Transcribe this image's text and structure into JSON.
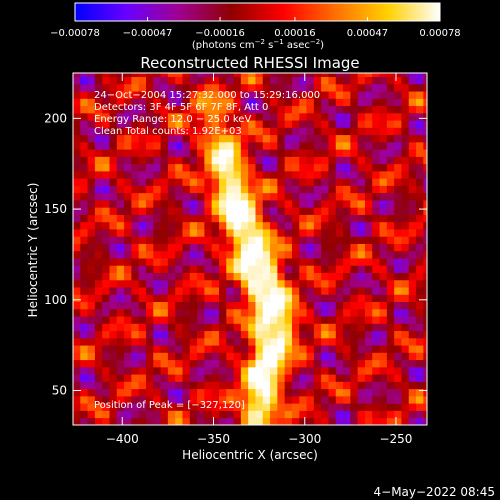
{
  "chart_data": {
    "type": "heatmap",
    "title": "Reconstructed RHESSI Image",
    "xlabel": "Heliocentric X (arcsec)",
    "ylabel": "Heliocentric Y (arcsec)",
    "xlim": [
      -427,
      -233
    ],
    "ylim": [
      31,
      225
    ],
    "xticks": [
      {
        "value": -400,
        "label": "−400"
      },
      {
        "value": -350,
        "label": "−350"
      },
      {
        "value": -300,
        "label": "−300"
      },
      {
        "value": -250,
        "label": "−250"
      }
    ],
    "yticks": [
      {
        "value": 50,
        "label": "50"
      },
      {
        "value": 100,
        "label": "100"
      },
      {
        "value": 150,
        "label": "150"
      },
      {
        "value": 200,
        "label": "200"
      }
    ],
    "colorbar": {
      "min": -0.00078,
      "max": 0.00078,
      "ticks": [
        {
          "value": -0.00078,
          "label": "−0.00078"
        },
        {
          "value": -0.00047,
          "label": "−0.00047"
        },
        {
          "value": -0.00016,
          "label": "−0.00016"
        },
        {
          "value": 0.00016,
          "label": "0.00016"
        },
        {
          "value": 0.00047,
          "label": "0.00047"
        },
        {
          "value": 0.00078,
          "label": "0.00078"
        }
      ],
      "colors": [
        "#0000ff",
        "#6a00ff",
        "#a00090",
        "#900000",
        "#ff0000",
        "#ff7000",
        "#ffd000",
        "#ffffff"
      ]
    },
    "info_lines": [
      "24−Oct−2004 15:27:32.000 to 15:29:16.000",
      "Detectors: 3F 4F 5F 6F 7F 8F, Att 0",
      "Energy Range: 12.0 − 25.0 keV",
      "Clean     Total counts: 1.92E+03"
    ],
    "peak_label": "Position of Peak = [−327,120]",
    "peak": [
      -327,
      120
    ],
    "source_ridge": [
      {
        "x": -325,
        "y": 40,
        "intensity": 0.00078
      },
      {
        "x": -322,
        "y": 60,
        "intensity": 0.0007
      },
      {
        "x": -318,
        "y": 78,
        "intensity": 0.00066
      },
      {
        "x": -315,
        "y": 90,
        "intensity": 0.0007
      },
      {
        "x": -322,
        "y": 108,
        "intensity": 0.00074
      },
      {
        "x": -327,
        "y": 120,
        "intensity": 0.00078
      },
      {
        "x": -332,
        "y": 138,
        "intensity": 0.0007
      },
      {
        "x": -338,
        "y": 152,
        "intensity": 0.0006
      },
      {
        "x": -342,
        "y": 168,
        "intensity": 0.00058
      },
      {
        "x": -345,
        "y": 185,
        "intensity": 0.0005
      },
      {
        "x": -352,
        "y": 205,
        "intensity": 0.00036
      }
    ]
  },
  "unit_label": {
    "prefix": "(photons cm",
    "exp1": "−2",
    "mid1": " s",
    "exp2": "−1",
    "mid2": " asec",
    "exp3": "−2",
    "suffix": ")"
  },
  "timestamp": "4−May−2022 08:45"
}
